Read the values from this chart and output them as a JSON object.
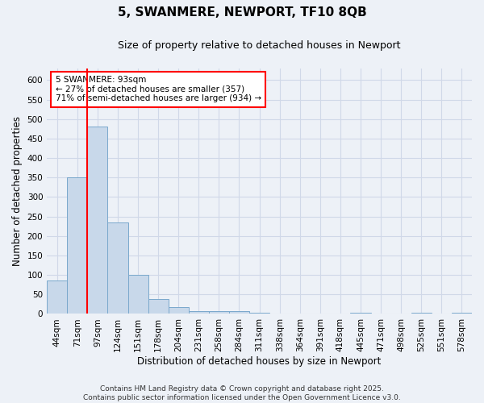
{
  "title": "5, SWANMERE, NEWPORT, TF10 8QB",
  "subtitle": "Size of property relative to detached houses in Newport",
  "xlabel": "Distribution of detached houses by size in Newport",
  "ylabel": "Number of detached properties",
  "categories": [
    "44sqm",
    "71sqm",
    "97sqm",
    "124sqm",
    "151sqm",
    "178sqm",
    "204sqm",
    "231sqm",
    "258sqm",
    "284sqm",
    "311sqm",
    "338sqm",
    "364sqm",
    "391sqm",
    "418sqm",
    "445sqm",
    "471sqm",
    "498sqm",
    "525sqm",
    "551sqm",
    "578sqm"
  ],
  "values": [
    85,
    350,
    480,
    235,
    100,
    38,
    17,
    7,
    7,
    7,
    3,
    0,
    0,
    0,
    0,
    3,
    0,
    0,
    3,
    0,
    3
  ],
  "bar_color": "#c8d8ea",
  "bar_edge_color": "#7aa8cc",
  "red_line_x": 1.5,
  "annotation_text": "5 SWANMERE: 93sqm\n← 27% of detached houses are smaller (357)\n71% of semi-detached houses are larger (934) →",
  "annotation_box_color": "white",
  "annotation_box_edge_color": "red",
  "red_line_color": "red",
  "ylim": [
    0,
    630
  ],
  "yticks": [
    0,
    50,
    100,
    150,
    200,
    250,
    300,
    350,
    400,
    450,
    500,
    550,
    600
  ],
  "footer_line1": "Contains HM Land Registry data © Crown copyright and database right 2025.",
  "footer_line2": "Contains public sector information licensed under the Open Government Licence v3.0.",
  "background_color": "#edf1f7",
  "grid_color": "#d0d8e8",
  "title_fontsize": 11,
  "subtitle_fontsize": 9,
  "axis_label_fontsize": 8.5,
  "tick_fontsize": 7.5,
  "annotation_fontsize": 7.5,
  "footer_fontsize": 6.5
}
